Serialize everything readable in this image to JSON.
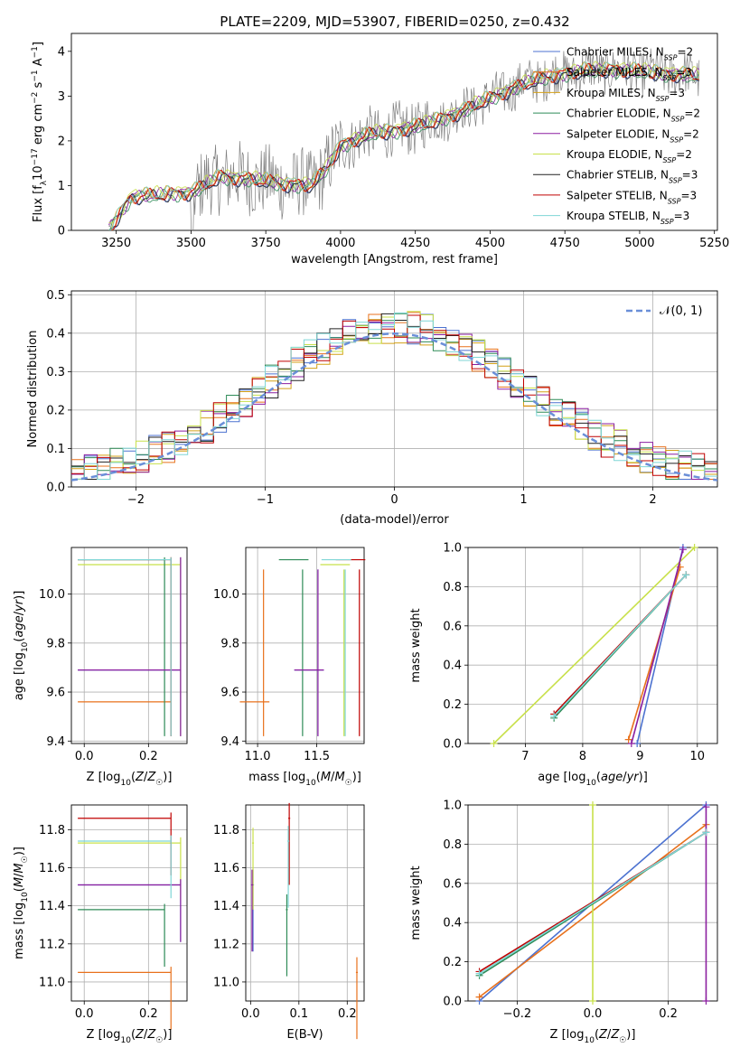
{
  "figure": {
    "title": "PLATE=2209, MJD=53907, FIBERID=0250, z=0.432"
  },
  "series_styles": [
    {
      "name": "Chabrier MILES, N_SSP=2",
      "color": "#4c72d0"
    },
    {
      "name": "Salpeter MILES, N_SSP=3",
      "color": "#e8711c"
    },
    {
      "name": "Kroupa MILES, N_SSP=3",
      "color": "#d4a017"
    },
    {
      "name": "Chabrier ELODIE, N_SSP=2",
      "color": "#2e8b57"
    },
    {
      "name": "Salpeter ELODIE, N_SSP=2",
      "color": "#8b1fa0"
    },
    {
      "name": "Kroupa ELODIE, N_SSP=2",
      "color": "#c8e04a"
    },
    {
      "name": "Chabrier STELIB, N_SSP=3",
      "color": "#222222"
    },
    {
      "name": "Salpeter STELIB, N_SSP=3",
      "color": "#c00000"
    },
    {
      "name": "Kroupa STELIB, N_SSP=3",
      "color": "#7fd6d6"
    }
  ],
  "legend_spectrum": {
    "entries": [
      {
        "base": "Chabrier MILES, N",
        "sub": "SSP",
        "tail": "=2"
      },
      {
        "base": "Salpeter MILES, N",
        "sub": "SSP",
        "tail": "=3"
      },
      {
        "base": "Kroupa MILES, N",
        "sub": "SSP",
        "tail": "=3"
      },
      {
        "base": "Chabrier ELODIE, N",
        "sub": "SSP",
        "tail": "=2"
      },
      {
        "base": "Salpeter ELODIE, N",
        "sub": "SSP",
        "tail": "=2"
      },
      {
        "base": "Kroupa ELODIE, N",
        "sub": "SSP",
        "tail": "=2"
      },
      {
        "base": "Chabrier STELIB, N",
        "sub": "SSP",
        "tail": "=3"
      },
      {
        "base": "Salpeter STELIB, N",
        "sub": "SSP",
        "tail": "=3"
      },
      {
        "base": "Kroupa STELIB, N",
        "sub": "SSP",
        "tail": "=3"
      }
    ]
  },
  "legend_residual": {
    "label": "𝒩(0, 1)"
  },
  "chart_data": [
    {
      "id": "spectrum",
      "type": "line",
      "xlabel": "wavelength [Angstrom, rest frame]",
      "ylabel": "Flux [f_λ 10^-17 erg cm^-2 s^-1 A^-1]",
      "xlim": [
        3100,
        5260
      ],
      "ylim": [
        0,
        4.4
      ],
      "xticks": [
        3250,
        3500,
        3750,
        4000,
        4250,
        4500,
        4750,
        5000,
        5250
      ],
      "yticks": [
        0,
        1,
        2,
        3,
        4
      ],
      "grid": false,
      "legend_position": "upper-right",
      "data_color": "#808080",
      "model_anchor_wavelengths": [
        3225,
        3300,
        3400,
        3500,
        3600,
        3700,
        3800,
        3900,
        3950,
        4000,
        4100,
        4200,
        4300,
        4400,
        4500,
        4600,
        4700,
        4800,
        4900,
        5000,
        5100,
        5200
      ],
      "model_anchor_flux": [
        0.0,
        0.75,
        0.8,
        0.85,
        1.2,
        1.15,
        1.05,
        1.0,
        1.35,
        1.9,
        2.15,
        2.25,
        2.4,
        2.65,
        2.95,
        3.25,
        3.45,
        3.55,
        3.6,
        3.55,
        3.5,
        3.45
      ]
    },
    {
      "id": "residuals",
      "type": "line",
      "xlabel": "(data-model)/error",
      "ylabel": "Normed distribution",
      "xlim": [
        -2.5,
        2.5
      ],
      "ylim": [
        0,
        0.51
      ],
      "xticks": [
        -2,
        -1,
        0,
        1,
        2
      ],
      "yticks": [
        0.0,
        0.1,
        0.2,
        0.3,
        0.4,
        0.5
      ],
      "grid": true,
      "legend_position": "upper-right",
      "normal_curve": {
        "mean": 0,
        "sigma": 1
      },
      "bin_width": 0.1
    },
    {
      "id": "age_vs_Z",
      "type": "scatter",
      "xlabel": "Z [log10(Z/Z☉)]",
      "ylabel": "age  [log10(age/yr)]",
      "xlim": [
        -0.04,
        0.32
      ],
      "ylim": [
        9.39,
        10.19
      ],
      "xticks": [
        0.0,
        0.2
      ],
      "yticks": [
        9.4,
        9.6,
        9.8,
        10.0
      ],
      "grid": true
    },
    {
      "id": "age_vs_mass",
      "type": "scatter",
      "xlabel": "mass [log10(M/M☉)]",
      "ylabel": "",
      "xlim": [
        10.9,
        11.9
      ],
      "ylim": [
        9.39,
        10.19
      ],
      "xticks": [
        11.0,
        11.5
      ],
      "yticks": [
        9.4,
        9.6,
        9.8,
        10.0
      ],
      "grid": true
    },
    {
      "id": "weight_vs_age",
      "type": "line",
      "xlabel": "age  [log10(age/yr)]",
      "ylabel": "mass weight",
      "xlim": [
        6.0,
        10.35
      ],
      "ylim": [
        0,
        1.0
      ],
      "xticks": [
        7,
        8,
        9,
        10
      ],
      "yticks": [
        0.0,
        0.2,
        0.4,
        0.6,
        0.8,
        1.0
      ],
      "grid": true
    },
    {
      "id": "mass_vs_Z",
      "type": "scatter",
      "xlabel": "Z [log10(Z/Z☉)]",
      "ylabel": "mass [log10(M/M☉)]",
      "xlim": [
        -0.04,
        0.32
      ],
      "ylim": [
        10.9,
        11.93
      ],
      "xticks": [
        0.0,
        0.2
      ],
      "yticks": [
        11.0,
        11.2,
        11.4,
        11.6,
        11.8
      ],
      "grid": true
    },
    {
      "id": "mass_vs_ebv",
      "type": "scatter",
      "xlabel": "E(B-V)",
      "ylabel": "",
      "xlim": [
        -0.01,
        0.235
      ],
      "ylim": [
        10.9,
        11.93
      ],
      "xticks": [
        0.0,
        0.1,
        0.2
      ],
      "yticks": [
        11.0,
        11.2,
        11.4,
        11.6,
        11.8
      ],
      "grid": true
    },
    {
      "id": "weight_vs_Z",
      "type": "line",
      "xlabel": "Z [log10(Z/Z☉)]",
      "ylabel": "mass weight",
      "xlim": [
        -0.33,
        0.33
      ],
      "ylim": [
        0,
        1.0
      ],
      "xticks": [
        -0.2,
        0.0,
        0.2
      ],
      "yticks": [
        0.0,
        0.2,
        0.4,
        0.6,
        0.8,
        1.0
      ],
      "grid": true
    }
  ],
  "population_points": [
    {
      "series": 0,
      "Z": 0.3,
      "age": 9.69,
      "mass": 11.51,
      "ebv": 0.005,
      "cumw": [
        0.0,
        1.0
      ],
      "ages": [
        8.95,
        9.75
      ],
      "Zs": [
        -0.3,
        0.3
      ]
    },
    {
      "series": 1,
      "Z": 0.27,
      "age": 9.56,
      "mass": 11.05,
      "ebv": 0.22,
      "cumw": [
        0.02,
        0.9
      ],
      "ages": [
        8.8,
        9.7
      ],
      "Zs": [
        -0.3,
        0.3
      ]
    },
    {
      "series": 5,
      "Z": 0.3,
      "age": 10.12,
      "mass": 11.73,
      "ebv": 0.005,
      "cumw": [
        0.0,
        1.0
      ],
      "ages": [
        6.45,
        9.95
      ],
      "Zs": [
        0.0,
        0.0
      ]
    },
    {
      "series": 3,
      "Z": 0.25,
      "age": 10.14,
      "mass": 11.38,
      "ebv": 0.075,
      "cumw": [
        0.13,
        0.86
      ],
      "ages": [
        7.5,
        9.8
      ],
      "Zs": [
        -0.3,
        0.3
      ]
    },
    {
      "series": 4,
      "Z": 0.3,
      "age": 9.69,
      "mass": 11.51,
      "ebv": 0.003,
      "cumw": [
        0.0,
        0.99
      ],
      "ages": [
        8.85,
        9.75
      ],
      "Zs": [
        0.3,
        0.3
      ]
    },
    {
      "series": 7,
      "Z": 0.27,
      "age": 10.14,
      "mass": 11.86,
      "ebv": 0.08,
      "cumw": [
        0.15,
        0.86
      ],
      "ages": [
        7.5,
        9.8
      ],
      "Zs": [
        -0.3,
        0.3
      ]
    },
    {
      "series": 8,
      "Z": 0.27,
      "age": 10.14,
      "mass": 11.74,
      "ebv": 0.078,
      "cumw": [
        0.14,
        0.86
      ],
      "ages": [
        7.5,
        9.8
      ],
      "Zs": [
        -0.3,
        0.3
      ]
    }
  ]
}
